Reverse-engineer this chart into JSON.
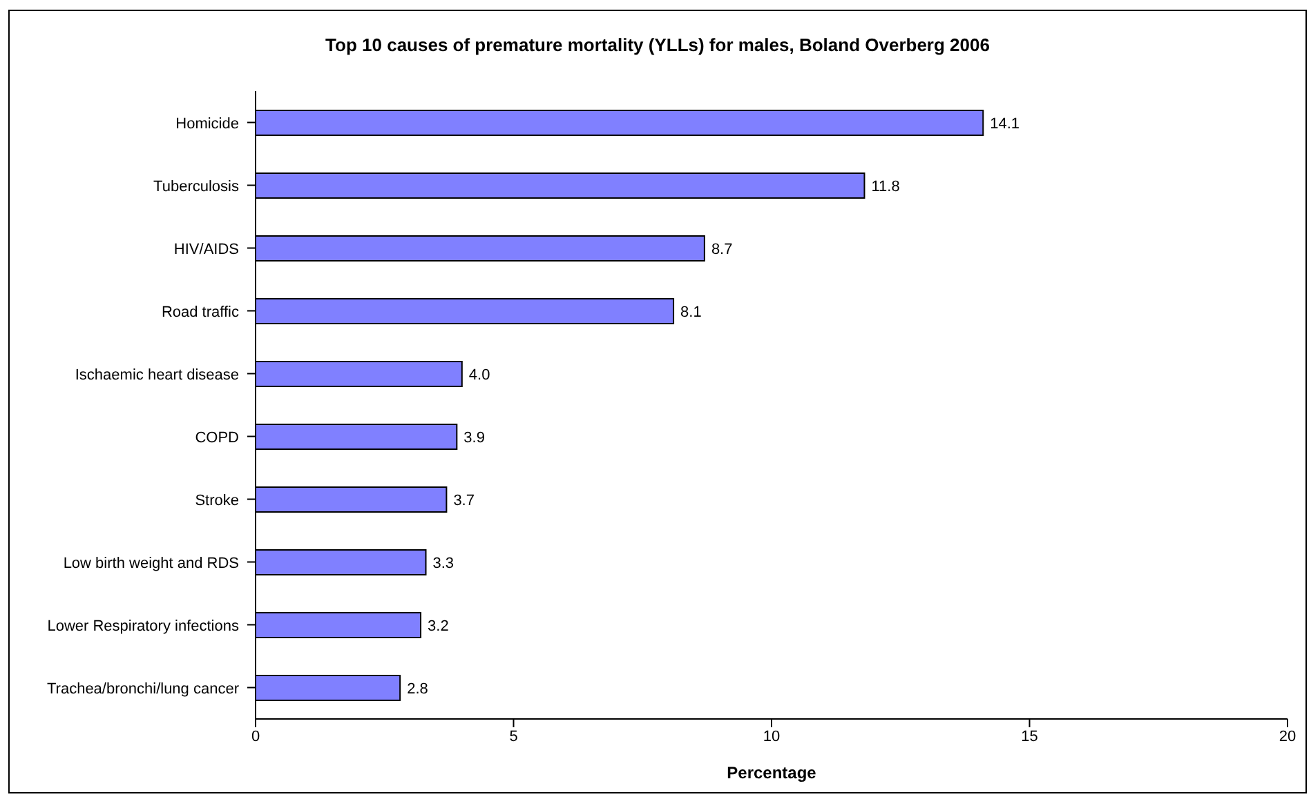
{
  "chart_data": {
    "type": "bar",
    "orientation": "horizontal",
    "title": "Top 10 causes of premature mortality (YLLs) for males, Boland Overberg 2006",
    "xlabel": "Percentage",
    "categories": [
      "Homicide",
      "Tuberculosis",
      "HIV/AIDS",
      "Road traffic",
      "Ischaemic heart disease",
      "COPD",
      "Stroke",
      "Low birth weight and RDS",
      "Lower Respiratory infections",
      "Trachea/bronchi/lung cancer"
    ],
    "values": [
      14.1,
      11.8,
      8.7,
      8.1,
      4.0,
      3.9,
      3.7,
      3.3,
      3.2,
      2.8
    ],
    "value_labels": [
      "14.1",
      "11.8",
      "8.7",
      "8.1",
      "4.0",
      "3.9",
      "3.7",
      "3.3",
      "3.2",
      "2.8"
    ],
    "color": "#8080ff",
    "xlim": [
      0,
      20
    ],
    "xticks": [
      0,
      5,
      10,
      15,
      20
    ],
    "grid": false
  }
}
